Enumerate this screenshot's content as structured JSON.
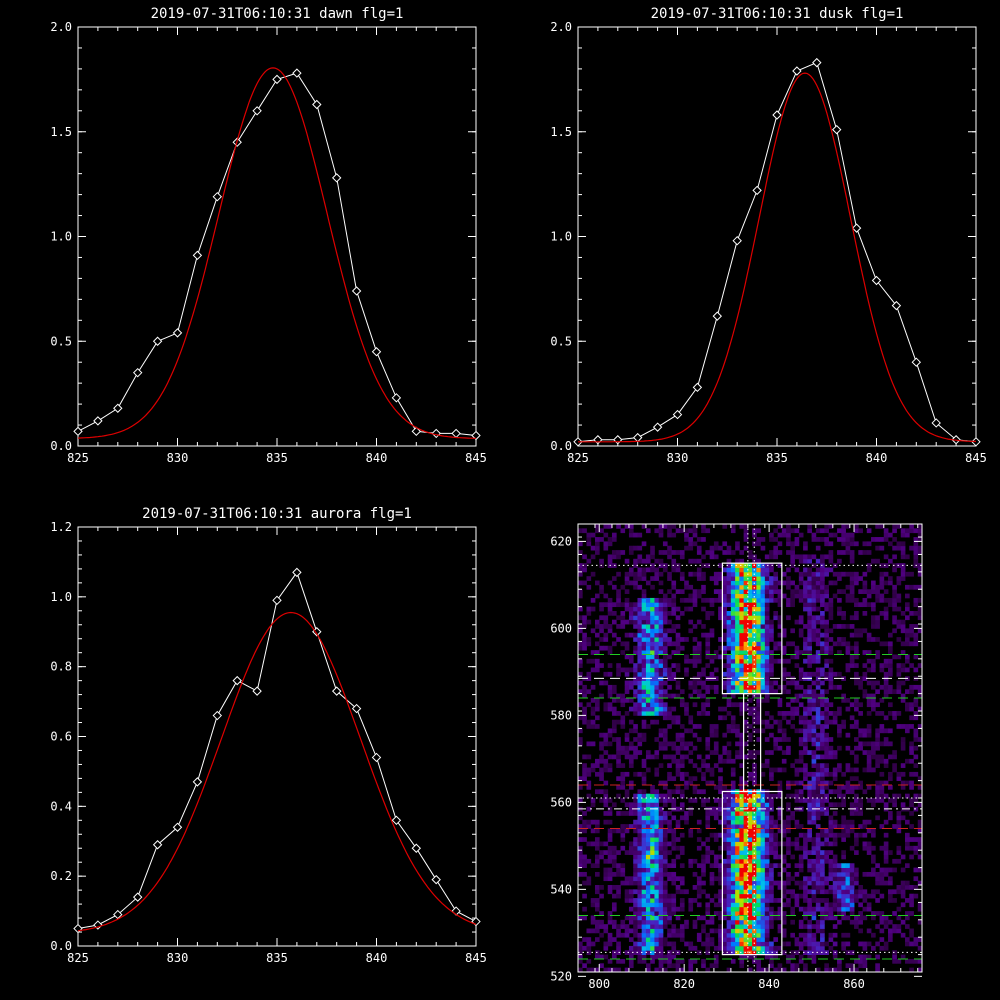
{
  "chart_data": [
    {
      "type": "line",
      "title": "2019-07-31T06:10:31 dawn flg=1",
      "xlim": [
        825,
        845
      ],
      "ylim": [
        0,
        2.0
      ],
      "xticks": [
        "825",
        "830",
        "835",
        "840",
        "845"
      ],
      "yticks": [
        "0.0",
        "0.5",
        "1.0",
        "1.5",
        "2.0"
      ],
      "series": [
        {
          "role": "measured",
          "color": "#ffffff",
          "marker": "diamond",
          "x": [
            825,
            826,
            827,
            828,
            829,
            830,
            831,
            832,
            833,
            834,
            835,
            836,
            837,
            838,
            839,
            840,
            841,
            842,
            843,
            844,
            845
          ],
          "y": [
            0.07,
            0.12,
            0.18,
            0.35,
            0.5,
            0.54,
            0.91,
            1.19,
            1.45,
            1.6,
            1.75,
            1.78,
            1.63,
            1.28,
            0.74,
            0.45,
            0.23,
            0.07,
            0.06,
            0.06,
            0.05
          ]
        },
        {
          "role": "fit",
          "color": "#dd0000",
          "gauss": [
            1.77,
            834.8,
            2.72,
            0.035
          ]
        }
      ]
    },
    {
      "type": "line",
      "title": "2019-07-31T06:10:31 dusk flg=1",
      "xlim": [
        825,
        845
      ],
      "ylim": [
        0,
        2.0
      ],
      "xticks": [
        "825",
        "830",
        "835",
        "840",
        "845"
      ],
      "yticks": [
        "0.0",
        "0.5",
        "1.0",
        "1.5",
        "2.0"
      ],
      "series": [
        {
          "role": "measured",
          "color": "#ffffff",
          "marker": "diamond",
          "x": [
            825,
            826,
            827,
            828,
            829,
            830,
            831,
            832,
            833,
            834,
            835,
            836,
            837,
            838,
            839,
            840,
            841,
            842,
            843,
            844,
            845
          ],
          "y": [
            0.02,
            0.03,
            0.03,
            0.04,
            0.09,
            0.15,
            0.28,
            0.62,
            0.98,
            1.22,
            1.58,
            1.79,
            1.83,
            1.51,
            1.04,
            0.79,
            0.67,
            0.4,
            0.11,
            0.03,
            0.02
          ]
        },
        {
          "role": "fit",
          "color": "#dd0000",
          "gauss": [
            1.76,
            836.4,
            2.3,
            0.02
          ]
        }
      ]
    },
    {
      "type": "line",
      "title": "2019-07-31T06:10:31 aurora flg=1",
      "xlim": [
        825,
        845
      ],
      "ylim": [
        0,
        1.2
      ],
      "xticks": [
        "825",
        "830",
        "835",
        "840",
        "845"
      ],
      "yticks": [
        "0.0",
        "0.2",
        "0.4",
        "0.6",
        "0.8",
        "1.0",
        "1.2"
      ],
      "series": [
        {
          "role": "measured",
          "color": "#ffffff",
          "marker": "diamond",
          "x": [
            825,
            826,
            827,
            828,
            829,
            830,
            831,
            832,
            833,
            834,
            835,
            836,
            837,
            838,
            839,
            840,
            841,
            842,
            843,
            844,
            845
          ],
          "y": [
            0.05,
            0.06,
            0.09,
            0.14,
            0.29,
            0.34,
            0.47,
            0.66,
            0.76,
            0.73,
            0.99,
            1.07,
            0.9,
            0.73,
            0.68,
            0.54,
            0.36,
            0.28,
            0.19,
            0.1,
            0.07
          ]
        },
        {
          "role": "fit",
          "color": "#dd0000",
          "gauss": [
            0.92,
            835.7,
            3.5,
            0.035
          ]
        }
      ]
    },
    {
      "type": "heatmap",
      "title": "",
      "xlim": [
        795,
        876
      ],
      "ylim": [
        521,
        624
      ],
      "xticks": [
        "800",
        "820",
        "840",
        "860"
      ],
      "yticks": [
        "520",
        "540",
        "560",
        "580",
        "600",
        "620"
      ],
      "colormap": "rainbow-on-black",
      "bands": [
        {
          "x_center": 812,
          "x_width": 4,
          "y_ranges": [
            [
              580,
              606
            ],
            [
              525,
              561
            ]
          ],
          "intensity": 0.45
        },
        {
          "x_center": 835,
          "x_width": 5,
          "y_ranges": [
            [
              585,
              614
            ],
            [
              525,
              562
            ]
          ],
          "intensity": 0.9
        },
        {
          "x_center": 851,
          "x_width": 4,
          "y_ranges": [
            [
              525,
              615
            ]
          ],
          "intensity": 0.15
        },
        {
          "x_center": 858,
          "x_width": 3,
          "y_ranges": [
            [
              535,
              545
            ]
          ],
          "intensity": 0.3
        }
      ],
      "boxes": [
        {
          "x": [
            829,
            843
          ],
          "y": [
            585,
            615
          ],
          "color": "#ffffff"
        },
        {
          "x": [
            829,
            843
          ],
          "y": [
            525,
            562.5
          ],
          "color": "#ffffff"
        },
        {
          "x": [
            834,
            838
          ],
          "y": [
            562.5,
            585
          ],
          "color": "#ffffff"
        }
      ],
      "vlines": [
        {
          "x": 835,
          "style": "dotted",
          "color": "#ffffff"
        },
        {
          "x": 836.5,
          "style": "dotted",
          "color": "#ffffff"
        }
      ],
      "hlines": [
        {
          "y": 614.5,
          "style": "dotted",
          "color": "#ffffff"
        },
        {
          "y": 594,
          "style": "dashed",
          "color": "#22cc22"
        },
        {
          "y": 588.5,
          "style": "dashed",
          "color": "#ffffff"
        },
        {
          "y": 584,
          "style": "dashed",
          "color": "#22cc22"
        },
        {
          "y": 564,
          "style": "dashed",
          "color": "#cc2222"
        },
        {
          "y": 561,
          "style": "dotted",
          "color": "#ffffff"
        },
        {
          "y": 558.5,
          "style": "dashdot",
          "color": "#ffffff"
        },
        {
          "y": 554,
          "style": "dashed",
          "color": "#cc2222"
        },
        {
          "y": 534,
          "style": "dashed",
          "color": "#22cc22"
        },
        {
          "y": 525.5,
          "style": "dotted",
          "color": "#ffffff"
        },
        {
          "y": 524,
          "style": "dashed",
          "color": "#22cc22"
        }
      ]
    }
  ]
}
